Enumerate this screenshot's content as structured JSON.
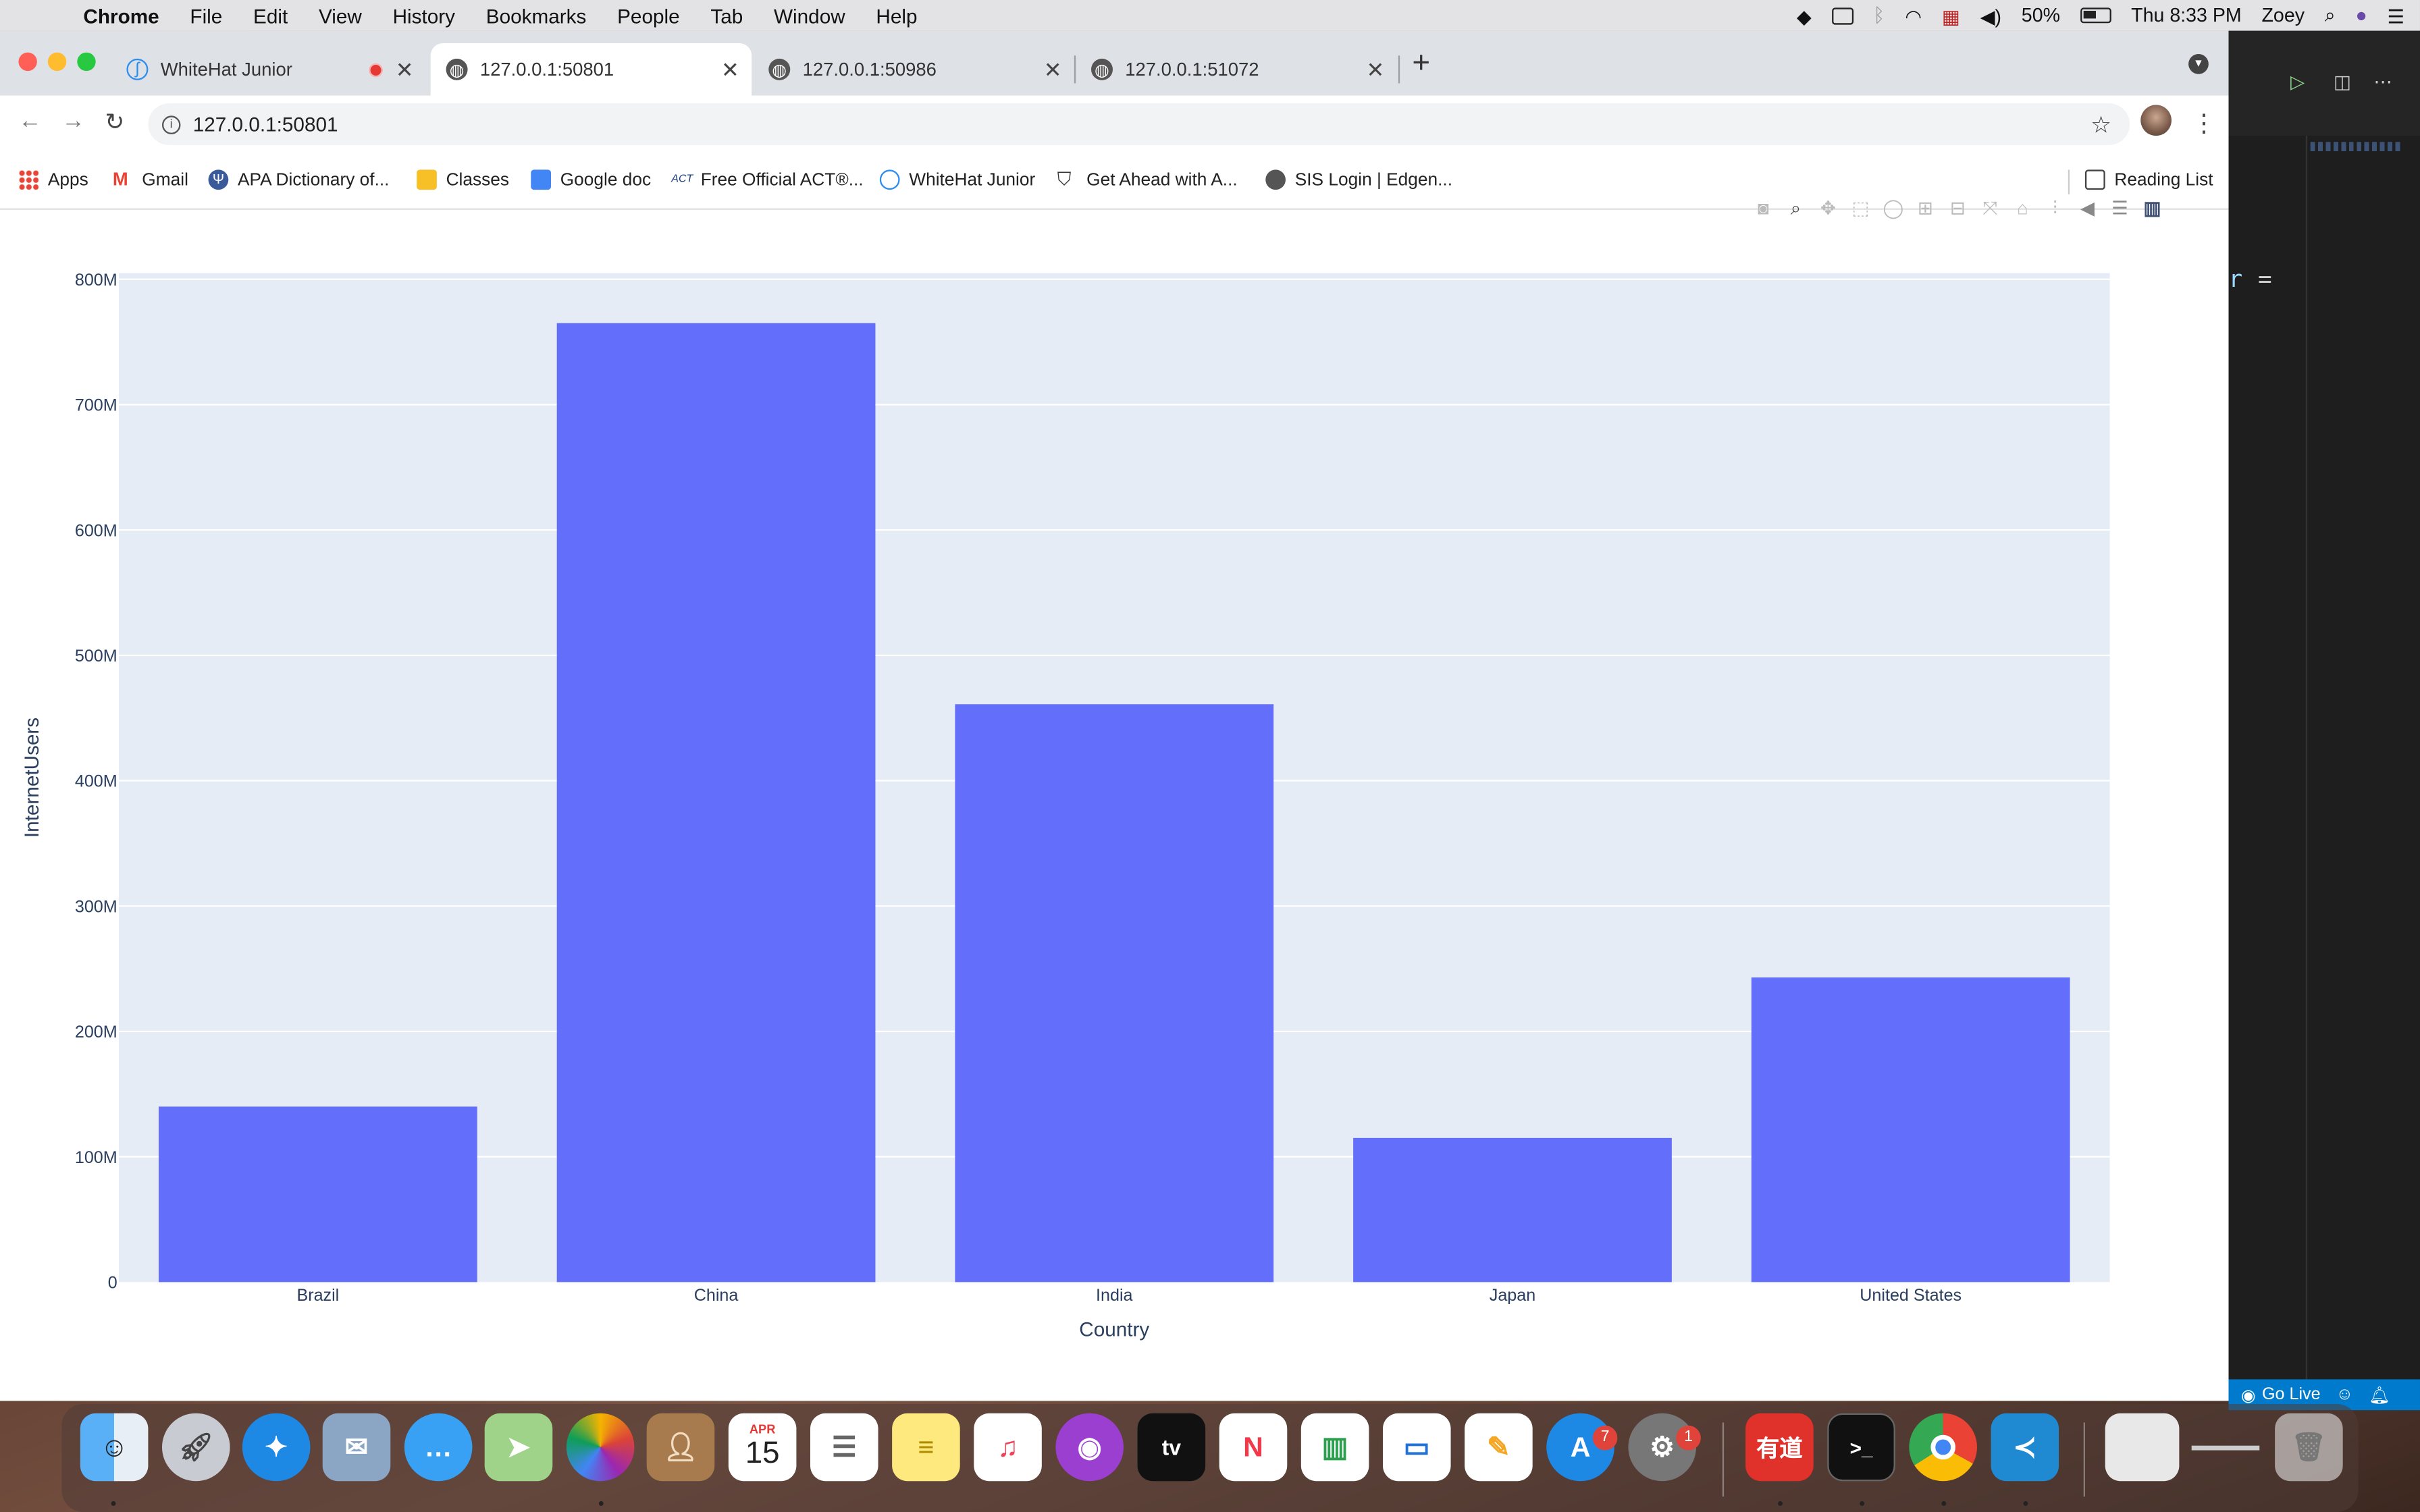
{
  "menubar": {
    "app": "Chrome",
    "menus": [
      "File",
      "Edit",
      "View",
      "History",
      "Bookmarks",
      "People",
      "Tab",
      "Window",
      "Help"
    ],
    "battery": "50%",
    "clock": "Thu 8:33 PM",
    "user": "Zoey"
  },
  "tabs": [
    {
      "title": "WhiteHat Junior",
      "recording": true
    },
    {
      "title": "127.0.0.1:50801",
      "active": true
    },
    {
      "title": "127.0.0.1:50986"
    },
    {
      "title": "127.0.0.1:51072"
    }
  ],
  "address": "127.0.0.1:50801",
  "bookmarks": [
    "Apps",
    "Gmail",
    "APA Dictionary of...",
    "Classes",
    "Google doc",
    "Free Official ACT®...",
    "WhiteHat Junior",
    "Get Ahead with A...",
    "SIS Login | Edgen..."
  ],
  "reading_list": "Reading List",
  "chart_data": {
    "type": "bar",
    "categories": [
      "Brazil",
      "China",
      "India",
      "Japan",
      "United States"
    ],
    "values": [
      140000000,
      765000000,
      461000000,
      115000000,
      243000000
    ],
    "xlabel": "Country",
    "ylabel": "InternetUsers",
    "ylim": [
      0,
      800000000
    ],
    "yticks": [
      {
        "value": 0,
        "label": "0"
      },
      {
        "value": 100000000,
        "label": "100M"
      },
      {
        "value": 200000000,
        "label": "200M"
      },
      {
        "value": 300000000,
        "label": "300M"
      },
      {
        "value": 400000000,
        "label": "400M"
      },
      {
        "value": 500000000,
        "label": "500M"
      },
      {
        "value": 600000000,
        "label": "600M"
      },
      {
        "value": 700000000,
        "label": "700M"
      },
      {
        "value": 800000000,
        "label": "800M"
      }
    ],
    "bar_color": "#636efa",
    "plot_bg": "#e5ecf6",
    "grid": true
  },
  "editor": {
    "code_fragment": "r",
    "operator": "="
  },
  "statusbar": {
    "go_live": "Go Live"
  },
  "dock": {
    "calendar_month": "APR",
    "calendar_day": "15",
    "appstore_badge": "7",
    "settings_badge": "1",
    "youdao_label": "有道",
    "tv_label": "tv",
    "terminal_label": ">_"
  }
}
